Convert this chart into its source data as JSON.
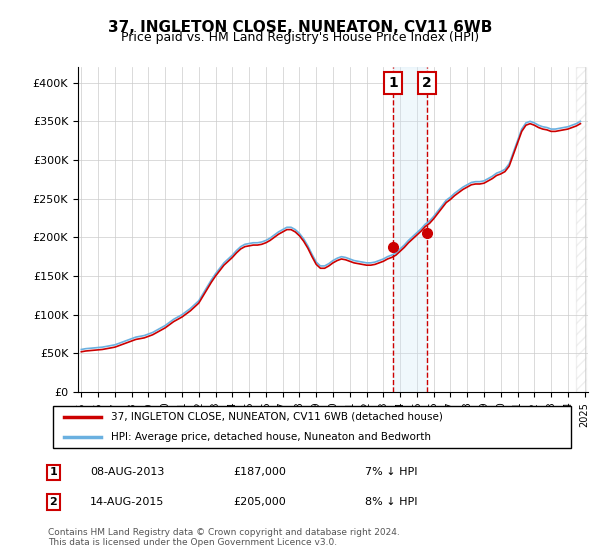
{
  "title": "37, INGLETON CLOSE, NUNEATON, CV11 6WB",
  "subtitle": "Price paid vs. HM Land Registry's House Price Index (HPI)",
  "legend_line1": "37, INGLETON CLOSE, NUNEATON, CV11 6WB (detached house)",
  "legend_line2": "HPI: Average price, detached house, Nuneaton and Bedworth",
  "footnote": "Contains HM Land Registry data © Crown copyright and database right 2024.\nThis data is licensed under the Open Government Licence v3.0.",
  "transaction1_label": "1",
  "transaction1_date": "08-AUG-2013",
  "transaction1_price": "£187,000",
  "transaction1_hpi": "7% ↓ HPI",
  "transaction2_label": "2",
  "transaction2_date": "14-AUG-2015",
  "transaction2_price": "£205,000",
  "transaction2_hpi": "8% ↓ HPI",
  "hpi_color": "#6ab0e0",
  "price_color": "#cc0000",
  "marker_color": "#cc0000",
  "vline_color": "#cc0000",
  "shade_color": "#d0e8f8",
  "hatch_color": "#aaaaaa",
  "ylim": [
    0,
    420000
  ],
  "yticks": [
    0,
    50000,
    100000,
    150000,
    200000,
    250000,
    300000,
    350000,
    400000
  ],
  "year_start": 1995,
  "year_end": 2025,
  "transaction1_year": 2013.6,
  "transaction2_year": 2015.6,
  "hpi_data_x": [
    1995,
    1995.25,
    1995.5,
    1995.75,
    1996,
    1996.25,
    1996.5,
    1996.75,
    1997,
    1997.25,
    1997.5,
    1997.75,
    1998,
    1998.25,
    1998.5,
    1998.75,
    1999,
    1999.25,
    1999.5,
    1999.75,
    2000,
    2000.25,
    2000.5,
    2000.75,
    2001,
    2001.25,
    2001.5,
    2001.75,
    2002,
    2002.25,
    2002.5,
    2002.75,
    2003,
    2003.25,
    2003.5,
    2003.75,
    2004,
    2004.25,
    2004.5,
    2004.75,
    2005,
    2005.25,
    2005.5,
    2005.75,
    2006,
    2006.25,
    2006.5,
    2006.75,
    2007,
    2007.25,
    2007.5,
    2007.75,
    2008,
    2008.25,
    2008.5,
    2008.75,
    2009,
    2009.25,
    2009.5,
    2009.75,
    2010,
    2010.25,
    2010.5,
    2010.75,
    2011,
    2011.25,
    2011.5,
    2011.75,
    2012,
    2012.25,
    2012.5,
    2012.75,
    2013,
    2013.25,
    2013.5,
    2013.75,
    2014,
    2014.25,
    2014.5,
    2014.75,
    2015,
    2015.25,
    2015.5,
    2015.75,
    2016,
    2016.25,
    2016.5,
    2016.75,
    2017,
    2017.25,
    2017.5,
    2017.75,
    2018,
    2018.25,
    2018.5,
    2018.75,
    2019,
    2019.25,
    2019.5,
    2019.75,
    2020,
    2020.25,
    2020.5,
    2020.75,
    2021,
    2021.25,
    2021.5,
    2021.75,
    2022,
    2022.25,
    2022.5,
    2022.75,
    2023,
    2023.25,
    2023.5,
    2023.75,
    2024,
    2024.25,
    2024.5,
    2024.75
  ],
  "hpi_data_y": [
    55000,
    56000,
    56500,
    57000,
    57500,
    58000,
    59000,
    60000,
    61000,
    63000,
    65000,
    67000,
    69000,
    71000,
    72000,
    73000,
    75000,
    77000,
    80000,
    83000,
    86000,
    90000,
    94000,
    97000,
    100000,
    104000,
    108000,
    113000,
    118000,
    127000,
    136000,
    145000,
    153000,
    160000,
    167000,
    172000,
    177000,
    183000,
    188000,
    191000,
    192000,
    193000,
    193000,
    194000,
    196000,
    199000,
    203000,
    207000,
    210000,
    213000,
    213000,
    210000,
    205000,
    198000,
    189000,
    178000,
    168000,
    163000,
    163000,
    166000,
    170000,
    173000,
    175000,
    174000,
    172000,
    170000,
    169000,
    168000,
    167000,
    167000,
    168000,
    170000,
    172000,
    175000,
    177000,
    180000,
    185000,
    190000,
    196000,
    201000,
    206000,
    211000,
    217000,
    221000,
    227000,
    234000,
    241000,
    248000,
    252000,
    257000,
    261000,
    265000,
    268000,
    271000,
    272000,
    272000,
    273000,
    276000,
    279000,
    283000,
    285000,
    288000,
    295000,
    310000,
    325000,
    340000,
    348000,
    350000,
    348000,
    345000,
    343000,
    342000,
    340000,
    340000,
    341000,
    342000,
    343000,
    345000,
    347000,
    350000
  ],
  "price_data_x": [
    1995,
    1995.25,
    1995.5,
    1995.75,
    1996,
    1996.25,
    1996.5,
    1996.75,
    1997,
    1997.25,
    1997.5,
    1997.75,
    1998,
    1998.25,
    1998.5,
    1998.75,
    1999,
    1999.25,
    1999.5,
    1999.75,
    2000,
    2000.25,
    2000.5,
    2000.75,
    2001,
    2001.25,
    2001.5,
    2001.75,
    2002,
    2002.25,
    2002.5,
    2002.75,
    2003,
    2003.25,
    2003.5,
    2003.75,
    2004,
    2004.25,
    2004.5,
    2004.75,
    2005,
    2005.25,
    2005.5,
    2005.75,
    2006,
    2006.25,
    2006.5,
    2006.75,
    2007,
    2007.25,
    2007.5,
    2007.75,
    2008,
    2008.25,
    2008.5,
    2008.75,
    2009,
    2009.25,
    2009.5,
    2009.75,
    2010,
    2010.25,
    2010.5,
    2010.75,
    2011,
    2011.25,
    2011.5,
    2011.75,
    2012,
    2012.25,
    2012.5,
    2012.75,
    2013,
    2013.25,
    2013.5,
    2013.75,
    2014,
    2014.25,
    2014.5,
    2014.75,
    2015,
    2015.25,
    2015.5,
    2015.75,
    2016,
    2016.25,
    2016.5,
    2016.75,
    2017,
    2017.25,
    2017.5,
    2017.75,
    2018,
    2018.25,
    2018.5,
    2018.75,
    2019,
    2019.25,
    2019.5,
    2019.75,
    2020,
    2020.25,
    2020.5,
    2020.75,
    2021,
    2021.25,
    2021.5,
    2021.75,
    2022,
    2022.25,
    2022.5,
    2022.75,
    2023,
    2023.25,
    2023.5,
    2023.75,
    2024,
    2024.25,
    2024.5,
    2024.75
  ],
  "price_data_y": [
    52000,
    53000,
    53500,
    54000,
    54500,
    55000,
    56000,
    57000,
    58000,
    60000,
    62000,
    64000,
    66000,
    68000,
    69000,
    70000,
    72000,
    74000,
    77000,
    80000,
    83000,
    87000,
    91000,
    94000,
    97000,
    101000,
    105000,
    110000,
    115000,
    124000,
    133000,
    142000,
    150000,
    157000,
    164000,
    169000,
    174000,
    180000,
    185000,
    188000,
    189000,
    190000,
    190000,
    191000,
    193000,
    196000,
    200000,
    204000,
    207000,
    210000,
    210000,
    207000,
    202000,
    195000,
    186000,
    175000,
    165000,
    160000,
    160000,
    163000,
    167000,
    170000,
    172000,
    171000,
    169000,
    167000,
    166000,
    165000,
    164000,
    164000,
    165000,
    167000,
    169000,
    172000,
    174000,
    177000,
    182000,
    187000,
    193000,
    198000,
    203000,
    208000,
    214000,
    218000,
    224000,
    231000,
    238000,
    245000,
    249000,
    254000,
    258000,
    262000,
    265000,
    268000,
    269000,
    269000,
    270000,
    273000,
    276000,
    280000,
    282000,
    285000,
    292000,
    307000,
    322000,
    337000,
    345000,
    347000,
    345000,
    342000,
    340000,
    339000,
    337000,
    337000,
    338000,
    339000,
    340000,
    342000,
    344000,
    347000
  ]
}
